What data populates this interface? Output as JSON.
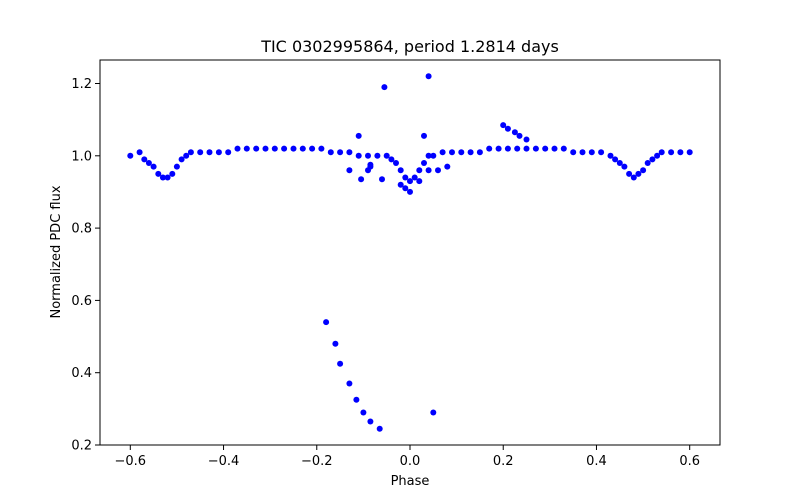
{
  "chart_data": {
    "type": "scatter",
    "title": "TIC 0302995864, period 1.2814 days",
    "xlabel": "Phase",
    "ylabel": "Normalized PDC flux",
    "xlim": [
      -0.665,
      0.665
    ],
    "ylim": [
      0.2,
      1.265
    ],
    "xticks": [
      -0.6,
      -0.4,
      -0.2,
      0.0,
      0.2,
      0.4,
      0.6
    ],
    "xtick_labels": [
      "−0.6",
      "−0.4",
      "−0.2",
      "0.0",
      "0.2",
      "0.4",
      "0.6"
    ],
    "yticks": [
      0.2,
      0.4,
      0.6,
      0.8,
      1.0,
      1.2
    ],
    "ytick_labels": [
      "0.2",
      "0.4",
      "0.6",
      "0.8",
      "1.0",
      "1.2"
    ],
    "grid": false,
    "marker_color": "#0000ff",
    "series": [
      {
        "x": [
          -0.6,
          -0.58,
          -0.57,
          -0.56,
          -0.55,
          -0.54,
          -0.53,
          -0.52,
          -0.51,
          -0.5,
          -0.49,
          -0.48,
          -0.47,
          -0.45,
          -0.43,
          -0.41,
          -0.39,
          -0.37,
          -0.35,
          -0.33,
          -0.31,
          -0.29,
          -0.27,
          -0.25,
          -0.23,
          -0.21,
          -0.19,
          -0.17,
          -0.15,
          -0.13,
          -0.11,
          -0.09,
          -0.07,
          -0.05,
          -0.04,
          -0.03,
          -0.02,
          -0.01,
          0.0,
          0.01,
          0.02,
          0.03,
          0.04,
          0.05,
          0.07,
          0.09,
          0.11,
          0.13,
          0.15,
          0.17,
          0.19,
          0.21,
          0.23,
          0.25,
          0.27,
          0.29,
          0.31,
          0.33,
          0.35,
          0.37,
          0.39,
          0.41,
          0.43,
          0.44,
          0.45,
          0.46,
          0.47,
          0.48,
          0.49,
          0.5,
          0.51,
          0.52,
          0.53,
          0.54,
          0.56,
          0.58,
          0.6
        ],
        "y": [
          1.0,
          1.01,
          0.99,
          0.98,
          0.97,
          0.95,
          0.94,
          0.94,
          0.95,
          0.97,
          0.99,
          1.0,
          1.01,
          1.01,
          1.01,
          1.01,
          1.01,
          1.02,
          1.02,
          1.02,
          1.02,
          1.02,
          1.02,
          1.02,
          1.02,
          1.02,
          1.02,
          1.01,
          1.01,
          1.01,
          1.0,
          1.0,
          1.0,
          1.0,
          0.99,
          0.98,
          0.96,
          0.94,
          0.93,
          0.94,
          0.96,
          0.98,
          1.0,
          1.0,
          1.01,
          1.01,
          1.01,
          1.01,
          1.01,
          1.02,
          1.02,
          1.02,
          1.02,
          1.02,
          1.02,
          1.02,
          1.02,
          1.02,
          1.01,
          1.01,
          1.01,
          1.01,
          1.0,
          0.99,
          0.98,
          0.97,
          0.95,
          0.94,
          0.95,
          0.96,
          0.98,
          0.99,
          1.0,
          1.01,
          1.01,
          1.01,
          1.01
        ]
      },
      {
        "x": [
          -0.18,
          -0.16,
          -0.15,
          -0.13,
          -0.115,
          -0.1,
          -0.085,
          -0.065,
          -0.055,
          0.04,
          0.05,
          -0.11,
          -0.09,
          -0.085,
          -0.13,
          -0.105,
          -0.085,
          -0.06,
          0.03,
          0.02,
          0.0,
          -0.01,
          -0.02,
          0.04,
          0.06,
          0.08,
          0.2,
          0.21,
          0.225,
          0.235,
          0.25
        ],
        "y": [
          0.54,
          0.48,
          0.425,
          0.37,
          0.325,
          0.29,
          0.265,
          0.245,
          1.19,
          1.22,
          0.29,
          1.055,
          0.96,
          0.975,
          0.96,
          0.935,
          0.97,
          0.935,
          1.055,
          0.93,
          0.9,
          0.91,
          0.92,
          0.96,
          0.96,
          0.97,
          1.085,
          1.075,
          1.065,
          1.055,
          1.045
        ]
      }
    ]
  }
}
